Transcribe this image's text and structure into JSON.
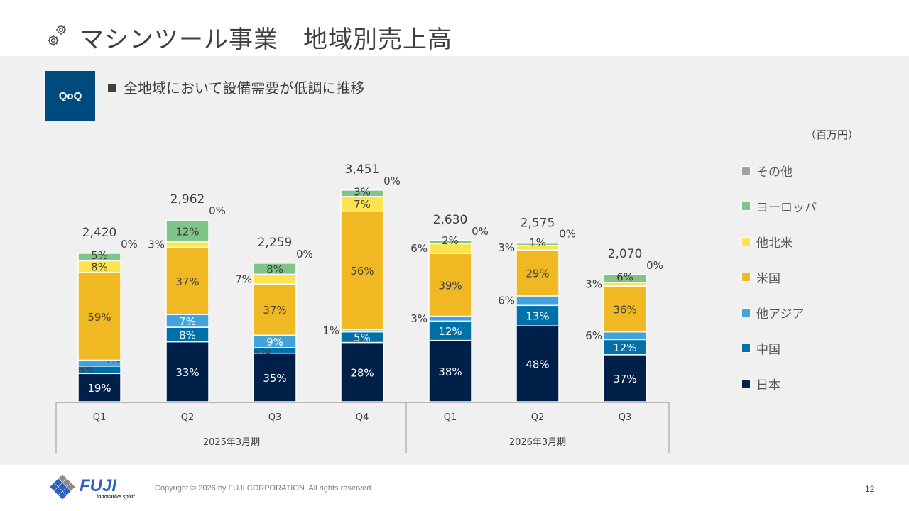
{
  "header": {
    "title": "マシンツール事業　地域別売上高",
    "icon": "gears-icon"
  },
  "badge": {
    "label": "QoQ"
  },
  "bullet": {
    "text": "全地域において設備需要が低調に推移"
  },
  "unit_label": "（百万円）",
  "colors": {
    "日本": "#00204a",
    "中国": "#0070a8",
    "他アジア": "#41a3db",
    "米国": "#f0b823",
    "他北米": "#fde44e",
    "ヨーロッパ": "#7fc58a",
    "その他": "#a0a0a0",
    "badge": "#004b7d"
  },
  "chart_data": {
    "type": "bar",
    "stacked": true,
    "title": "マシンツール事業　地域別売上高",
    "unit": "百万円",
    "categories": [
      "Q1",
      "Q2",
      "Q3",
      "Q4",
      "Q1",
      "Q2",
      "Q3"
    ],
    "groups": [
      {
        "label": "2025年3月期",
        "categories": [
          "Q1",
          "Q2",
          "Q3",
          "Q4"
        ]
      },
      {
        "label": "2026年3月期",
        "categories": [
          "Q1",
          "Q2",
          "Q3"
        ]
      }
    ],
    "totals": [
      2420,
      2962,
      2259,
      3451,
      2630,
      2575,
      2070
    ],
    "total_labels": [
      "2,420",
      "2,962",
      "2,259",
      "3,451",
      "2,630",
      "2,575",
      "2,070"
    ],
    "series": [
      {
        "name": "日本",
        "values_pct": [
          19,
          33,
          35,
          28,
          38,
          48,
          37
        ]
      },
      {
        "name": "中国",
        "values_pct": [
          5,
          8,
          4,
          5,
          12,
          13,
          12
        ]
      },
      {
        "name": "他アジア",
        "values_pct": [
          4,
          7,
          9,
          1,
          3,
          6,
          6
        ]
      },
      {
        "name": "米国",
        "values_pct": [
          59,
          37,
          37,
          56,
          39,
          29,
          36
        ]
      },
      {
        "name": "他北米",
        "values_pct": [
          8,
          3,
          7,
          7,
          6,
          3,
          3
        ]
      },
      {
        "name": "ヨーロッパ",
        "values_pct": [
          5,
          12,
          8,
          3,
          2,
          1,
          6
        ]
      },
      {
        "name": "その他",
        "values_pct": [
          0,
          0,
          0,
          0,
          0,
          0,
          0
        ]
      }
    ],
    "legend": [
      "その他",
      "ヨーロッパ",
      "他北米",
      "米国",
      "他アジア",
      "中国",
      "日本"
    ],
    "legend_position": "right",
    "grid": false,
    "xlabel": "",
    "ylabel": ""
  },
  "footer": {
    "brand": "FUJI",
    "tagline": "innovative spirit",
    "copyright": "Copyright © 2026 by FUJI CORPORATION. All rights reserved.",
    "page_number": "12"
  }
}
